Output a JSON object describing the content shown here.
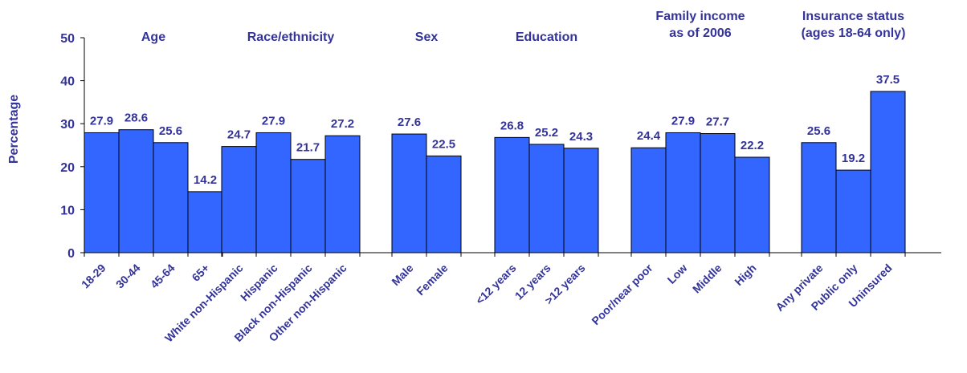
{
  "chart_data": {
    "type": "bar",
    "ylabel": "Percentage",
    "ylim": [
      0,
      50
    ],
    "yticks": [
      "0",
      "10",
      "20",
      "30",
      "40",
      "50"
    ],
    "grid": false,
    "colors": {
      "bar": "#3366ff",
      "bar_stroke": "#000000",
      "text": "#333399"
    },
    "groups": [
      {
        "label": [
          "Age"
        ],
        "bars": [
          {
            "category": "18-29",
            "value": 27.9,
            "label": "27.9"
          },
          {
            "category": "30-44",
            "value": 28.6,
            "label": "28.6"
          },
          {
            "category": "45-64",
            "value": 25.6,
            "label": "25.6"
          },
          {
            "category": "65+",
            "value": 14.2,
            "label": "14.2"
          }
        ]
      },
      {
        "label": [
          "Race/ethnicity"
        ],
        "bars": [
          {
            "category": "White non-Hispanic",
            "value": 24.7,
            "label": "24.7"
          },
          {
            "category": "Hispanic",
            "value": 27.9,
            "label": "27.9"
          },
          {
            "category": "Black non-Hispanic",
            "value": 21.7,
            "label": "21.7"
          },
          {
            "category": "Other non-Hispanic",
            "value": 27.2,
            "label": "27.2"
          }
        ]
      },
      {
        "label": [
          "Sex"
        ],
        "bars": [
          {
            "category": "Male",
            "value": 27.6,
            "label": "27.6"
          },
          {
            "category": "Female",
            "value": 22.5,
            "label": "22.5"
          }
        ]
      },
      {
        "label": [
          "Education"
        ],
        "bars": [
          {
            "category": "<12 years",
            "value": 26.8,
            "label": "26.8"
          },
          {
            "category": "12 years",
            "value": 25.2,
            "label": "25.2"
          },
          {
            "category": ">12 years",
            "value": 24.3,
            "label": "24.3"
          }
        ]
      },
      {
        "label": [
          "Family income",
          "as of 2006"
        ],
        "bars": [
          {
            "category": "Poor/near poor",
            "value": 24.4,
            "label": "24.4"
          },
          {
            "category": "Low",
            "value": 27.9,
            "label": "27.9"
          },
          {
            "category": "Middle",
            "value": 27.7,
            "label": "27.7"
          },
          {
            "category": "High",
            "value": 22.2,
            "label": "22.2"
          }
        ]
      },
      {
        "label": [
          "Insurance status",
          "(ages 18-64 only)"
        ],
        "bars": [
          {
            "category": "Any private",
            "value": 25.6,
            "label": "25.6"
          },
          {
            "category": "Public only",
            "value": 19.2,
            "label": "19.2"
          },
          {
            "category": "Uninsured",
            "value": 37.5,
            "label": "37.5"
          }
        ]
      }
    ]
  }
}
